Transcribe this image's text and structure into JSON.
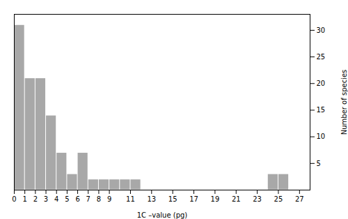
{
  "chart_data": {
    "type": "bar",
    "x": [
      0,
      1,
      2,
      3,
      4,
      5,
      6,
      7,
      8,
      9,
      10,
      11,
      24,
      25
    ],
    "values": [
      31,
      21,
      21,
      14,
      7,
      3,
      7,
      2,
      2,
      2,
      2,
      2,
      3,
      3
    ],
    "bar_width": 1,
    "color": "#a8a8a8",
    "xlabel": "1C –value (pg)",
    "ylabel": "Number of species",
    "xlim": [
      0,
      28
    ],
    "xticks": [
      0,
      1,
      2,
      3,
      4,
      5,
      6,
      7,
      8,
      9,
      11,
      13,
      15,
      17,
      19,
      21,
      23,
      25,
      27
    ],
    "ylim": [
      0,
      33
    ],
    "yticks": [
      5,
      10,
      15,
      20,
      25,
      30
    ],
    "grid": false
  }
}
